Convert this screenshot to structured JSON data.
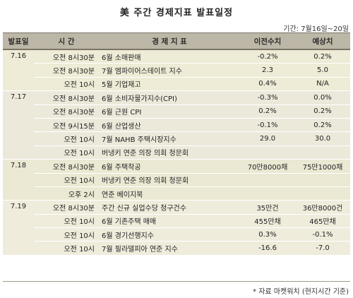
{
  "title": "美 주간 경제지표 발표일정",
  "period": "기간: 7월16일~20일",
  "headers": [
    "발표일",
    "시  간",
    "경  제  지  표",
    "이전수치",
    "예상치"
  ],
  "groups": [
    {
      "date": "7.16",
      "rows": [
        {
          "time": "오전 8시30분",
          "indicator": "6월 소매판매",
          "prev": "-0.2%",
          "forecast": "0.2%"
        },
        {
          "time": "오전 8시30분",
          "indicator": "7월 엠파이어스테이트 지수",
          "prev": "2.3",
          "forecast": "5.0"
        },
        {
          "time": "오전 10시",
          "indicator": "5월 기업재고",
          "prev": "0.4%",
          "forecast": "N/A"
        }
      ]
    },
    {
      "date": "7.17",
      "rows": [
        {
          "time": "오전 8시30분",
          "indicator": "6월 소비자물가지수(CPI)",
          "prev": "-0.3%",
          "forecast": "0.0%"
        },
        {
          "time": "오전 8시30분",
          "indicator": "6월 근원 CPI",
          "prev": "0.2%",
          "forecast": "0.2%"
        },
        {
          "time": "오전 9시15분",
          "indicator": "6월 산업생산",
          "prev": "-0.1%",
          "forecast": "0.2%"
        },
        {
          "time": "오전 10시",
          "indicator": "7월 NAHB 주택시장지수",
          "prev": "29.0",
          "forecast": "30.0"
        },
        {
          "time": "오전 10시",
          "indicator": "버냉키 연준 의장 의회 청문회",
          "prev": "",
          "forecast": ""
        }
      ]
    },
    {
      "date": "7.18",
      "rows": [
        {
          "time": "오전 8시30분",
          "indicator": "6월 주택착공",
          "prev": "70만8000채",
          "forecast": "75만1000채"
        },
        {
          "time": "오전 10시",
          "indicator": "버냉키 연준 의장 의회 청문회",
          "prev": "",
          "forecast": ""
        },
        {
          "time": "오후 2시",
          "indicator": "연준 베이지북",
          "prev": "",
          "forecast": ""
        }
      ]
    },
    {
      "date": "7.19",
      "rows": [
        {
          "time": "오전 8시30분",
          "indicator": "주간 신규 실업수당 청구건수",
          "prev": "35만건",
          "forecast": "36만8000건"
        },
        {
          "time": "오전 10시",
          "indicator": "6월 기존주택 매매",
          "prev": "455만채",
          "forecast": "465만채"
        },
        {
          "time": "오전 10시",
          "indicator": "6월 경기선행지수",
          "prev": "0.3%",
          "forecast": "-0.1%"
        },
        {
          "time": "오전 10시",
          "indicator": "7월 필라델피아 연준 지수",
          "prev": "-16.6",
          "forecast": "-7.0"
        }
      ]
    }
  ],
  "source": "* 자료 마켓워치 (현지시간 기준)"
}
